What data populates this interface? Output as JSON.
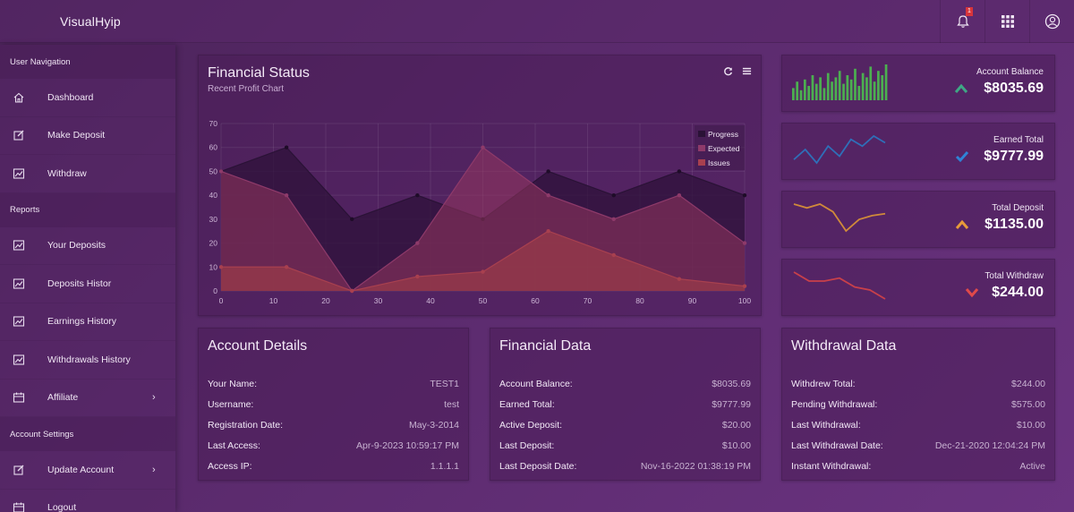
{
  "brand": "VisualHyip",
  "topbar": {
    "notification_count": "1",
    "icons": [
      "bell-icon",
      "grid-icon",
      "user-circle-icon"
    ]
  },
  "sidebar": {
    "sections": [
      {
        "title": "User Navigation",
        "items": [
          {
            "label": "Dashboard",
            "icon": "home-icon"
          },
          {
            "label": "Make Deposit",
            "icon": "edit-icon"
          },
          {
            "label": "Withdraw",
            "icon": "chart-icon"
          }
        ]
      },
      {
        "title": "Reports",
        "items": [
          {
            "label": "Your Deposits",
            "icon": "chart-icon"
          },
          {
            "label": "Deposits Histor",
            "icon": "chart-icon"
          },
          {
            "label": "Earnings History",
            "icon": "chart-icon"
          },
          {
            "label": "Withdrawals History",
            "icon": "chart-icon"
          },
          {
            "label": "Affiliate",
            "icon": "calendar-icon",
            "chevron": true
          }
        ]
      },
      {
        "title": "Account Settings",
        "items": [
          {
            "label": "Update Account",
            "icon": "edit-icon",
            "chevron": true
          },
          {
            "label": "Logout",
            "icon": "calendar-icon"
          }
        ]
      }
    ]
  },
  "financial_status": {
    "title": "Financial Status",
    "subtitle": "Recent Profit Chart"
  },
  "chart_data": {
    "type": "area",
    "x": [
      0,
      12.5,
      25,
      37.5,
      50,
      62.5,
      75,
      87.5,
      100
    ],
    "xticks": [
      0,
      10,
      20,
      30,
      40,
      50,
      60,
      70,
      80,
      90,
      100
    ],
    "yticks": [
      0,
      10,
      20,
      30,
      40,
      50,
      60,
      70
    ],
    "xlim": [
      0,
      100
    ],
    "ylim": [
      0,
      70
    ],
    "grid": true,
    "legend_position": "top-right",
    "series": [
      {
        "name": "Progress",
        "color": "#3a1d4a",
        "values": [
          50,
          60,
          30,
          40,
          30,
          50,
          40,
          50,
          40
        ]
      },
      {
        "name": "Expected",
        "color": "#8e3a6a",
        "values": [
          50,
          40,
          0,
          20,
          60,
          40,
          30,
          40,
          20
        ]
      },
      {
        "name": "Issues",
        "color": "#a8404f",
        "values": [
          10,
          10,
          0,
          6,
          8,
          25,
          15,
          5,
          2
        ]
      }
    ]
  },
  "stats": [
    {
      "label": "Account Balance",
      "value": "$8035.69",
      "arrow": "up",
      "arrow_color": "#3fa785",
      "spark_type": "bars",
      "spark_color": "#4caf50",
      "spark_values": [
        4,
        7,
        3,
        8,
        5,
        10,
        6,
        9,
        4,
        11,
        7,
        9,
        12,
        6,
        10,
        8,
        13,
        5,
        11,
        9,
        14,
        7,
        12,
        10,
        15
      ]
    },
    {
      "label": "Earned Total",
      "value": "$9777.99",
      "arrow": "check",
      "arrow_color": "#2f83d6",
      "spark_type": "line",
      "spark_color": "#2f6fb8",
      "spark_values": [
        5,
        8,
        4,
        9,
        6,
        11,
        9,
        12,
        10
      ]
    },
    {
      "label": "Total Deposit",
      "value": "$1135.00",
      "arrow": "up",
      "arrow_color": "#e89b3a",
      "spark_type": "line",
      "spark_color": "#d08a3a",
      "spark_values": [
        10,
        9,
        10,
        8,
        3,
        6,
        7,
        7.5
      ]
    },
    {
      "label": "Total Withdraw",
      "value": "$244.00",
      "arrow": "down",
      "arrow_color": "#e04a4a",
      "spark_type": "line",
      "spark_color": "#c8404a",
      "spark_values": [
        12,
        9,
        9,
        10,
        7,
        6,
        3
      ]
    }
  ],
  "account_details": {
    "title": "Account Details",
    "rows": [
      {
        "k": "Your Name:",
        "v": "TEST1"
      },
      {
        "k": "Username:",
        "v": "test"
      },
      {
        "k": "Registration Date:",
        "v": "May-3-2014"
      },
      {
        "k": "Last Access:",
        "v": "Apr-9-2023 10:59:17 PM"
      },
      {
        "k": "Access IP:",
        "v": "1.1.1.1"
      }
    ]
  },
  "financial_data": {
    "title": "Financial Data",
    "rows": [
      {
        "k": "Account Balance:",
        "v": "$8035.69"
      },
      {
        "k": "Earned Total:",
        "v": "$9777.99"
      },
      {
        "k": "Active Deposit:",
        "v": "$20.00"
      },
      {
        "k": "Last Deposit:",
        "v": "$10.00"
      },
      {
        "k": "Last Deposit Date:",
        "v": "Nov-16-2022 01:38:19 PM"
      }
    ]
  },
  "withdrawal_data": {
    "title": "Withdrawal Data",
    "rows": [
      {
        "k": "Withdrew Total:",
        "v": "$244.00"
      },
      {
        "k": "Pending Withdrawal:",
        "v": "$575.00"
      },
      {
        "k": "Last Withdrawal:",
        "v": "$10.00"
      },
      {
        "k": "Last Withdrawal Date:",
        "v": "Dec-21-2020 12:04:24 PM"
      },
      {
        "k": "Instant Withdrawal:",
        "v": "Active"
      }
    ]
  }
}
